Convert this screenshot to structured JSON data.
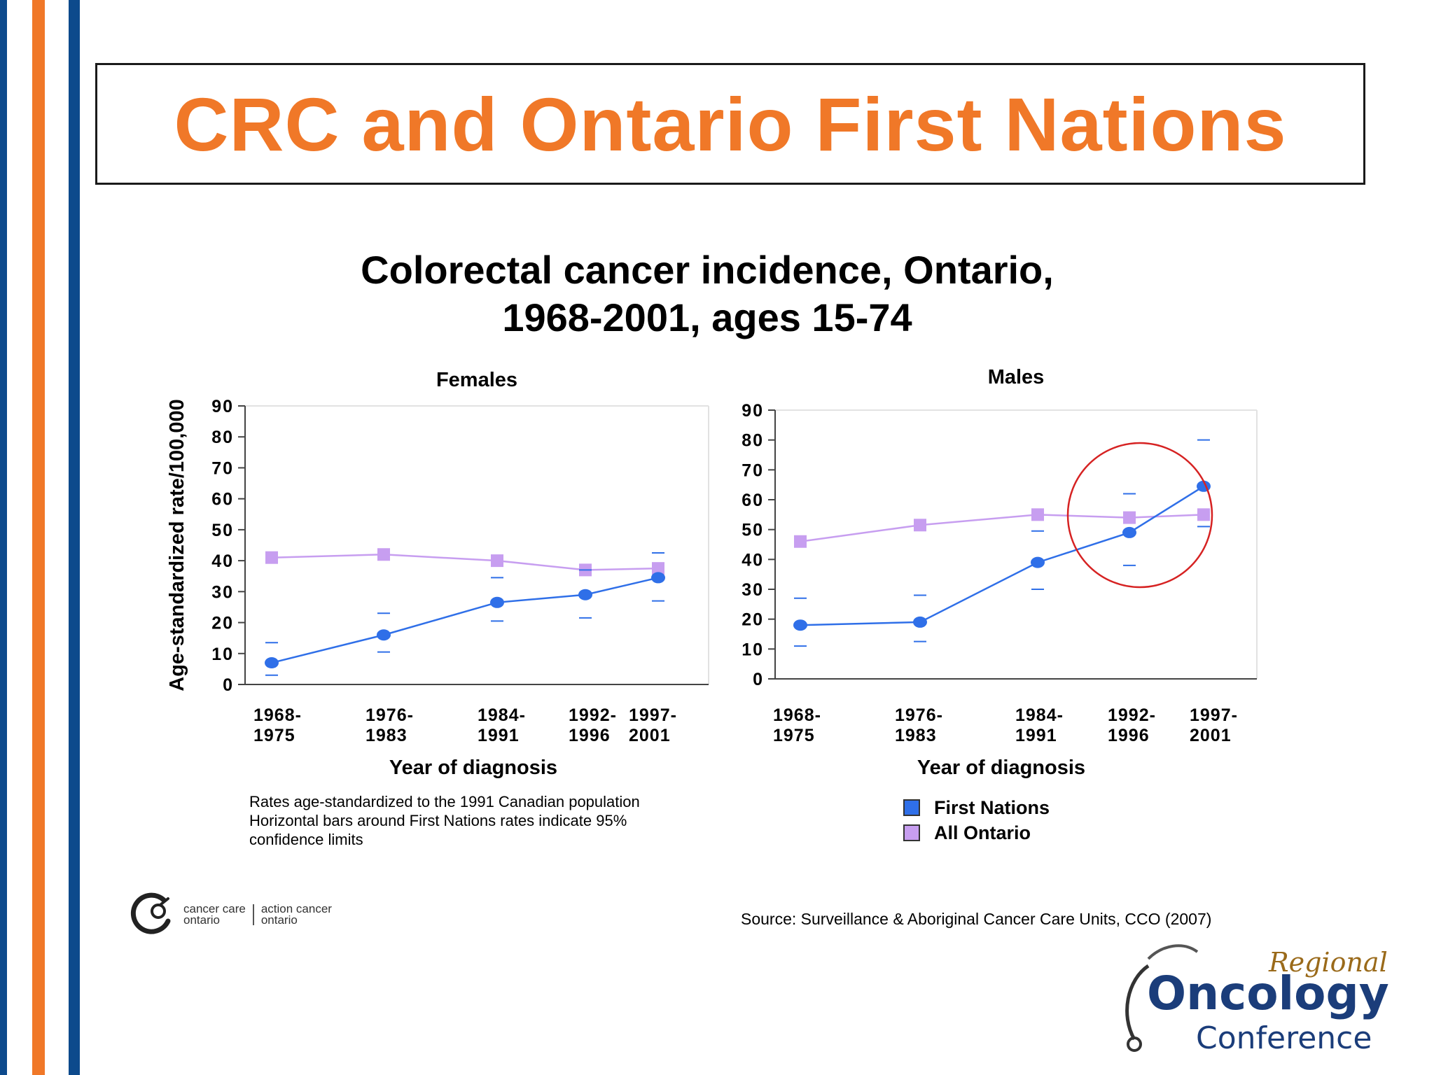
{
  "slide": {
    "title": "CRC and Ontario First Nations",
    "chart_title_line1": "Colorectal cancer incidence, Ontario,",
    "chart_title_line2": "1968-2001, ages 15-74",
    "footnote_lines": [
      "Rates age-standardized to the 1991 Canadian population",
      "Horizontal bars around First Nations rates indicate 95%",
      "confidence limits"
    ],
    "source": "Source: Surveillance & Aboriginal Cancer Care Units, CCO (2007)",
    "logos": {
      "cco_left_line1": "cancer care",
      "cco_left_line2": "ontario",
      "cco_right_line1": "action cancer",
      "cco_right_line2": "ontario",
      "conference_script": "Regional",
      "conference_big": "Oncology",
      "conference_small": "Conference"
    },
    "legend": [
      {
        "label": "First Nations",
        "color": "#2f6fe8"
      },
      {
        "label": "All Ontario",
        "color": "#c79ef0"
      }
    ]
  },
  "colors": {
    "accent_orange": "#f07828",
    "stripe_navy": "#0d4a8c",
    "first_nations": "#2f6fe8",
    "all_ontario": "#c79ef0",
    "highlight_circle": "#d62222"
  },
  "chart_data": [
    {
      "type": "line",
      "title": "Females",
      "xlabel": "Year of diagnosis",
      "ylabel": "Age-standardized rate/100,000",
      "ylim": [
        0,
        90
      ],
      "yticks": [
        "0",
        "10",
        "20",
        "30",
        "40",
        "50",
        "60",
        "70",
        "80",
        "90"
      ],
      "categories": [
        [
          "1968-",
          "1975"
        ],
        [
          "1976-",
          "1983"
        ],
        [
          "1984-",
          "1991"
        ],
        [
          "1992-",
          "1996"
        ],
        [
          "1997-",
          "2001"
        ]
      ],
      "series": [
        {
          "name": "First Nations",
          "values": [
            7,
            16,
            26.5,
            29,
            34.5
          ],
          "ci_low": [
            3,
            10.5,
            20.5,
            21.5,
            27
          ],
          "ci_high": [
            13.5,
            23,
            34.5,
            37,
            42.5
          ]
        },
        {
          "name": "All Ontario",
          "values": [
            41,
            42,
            40,
            37,
            37.5
          ]
        }
      ],
      "grid": false
    },
    {
      "type": "line",
      "title": "Males",
      "xlabel": "Year of diagnosis",
      "ylabel": "",
      "ylim": [
        0,
        90
      ],
      "yticks": [
        "0",
        "10",
        "20",
        "30",
        "40",
        "50",
        "60",
        "70",
        "80",
        "90"
      ],
      "categories": [
        [
          "1968-",
          "1975"
        ],
        [
          "1976-",
          "1983"
        ],
        [
          "1984-",
          "1991"
        ],
        [
          "1992-",
          "1996"
        ],
        [
          "1997-",
          "2001"
        ]
      ],
      "series": [
        {
          "name": "First Nations",
          "values": [
            18,
            19,
            39,
            49,
            64.5
          ],
          "ci_low": [
            11,
            12.5,
            30,
            38,
            51
          ],
          "ci_high": [
            27,
            28,
            49.5,
            62,
            80
          ]
        },
        {
          "name": "All Ontario",
          "values": [
            46,
            51.5,
            55,
            54,
            55
          ]
        }
      ],
      "grid": false,
      "highlight": "circle around the 1992-1996 and 1997-2001 points"
    }
  ]
}
